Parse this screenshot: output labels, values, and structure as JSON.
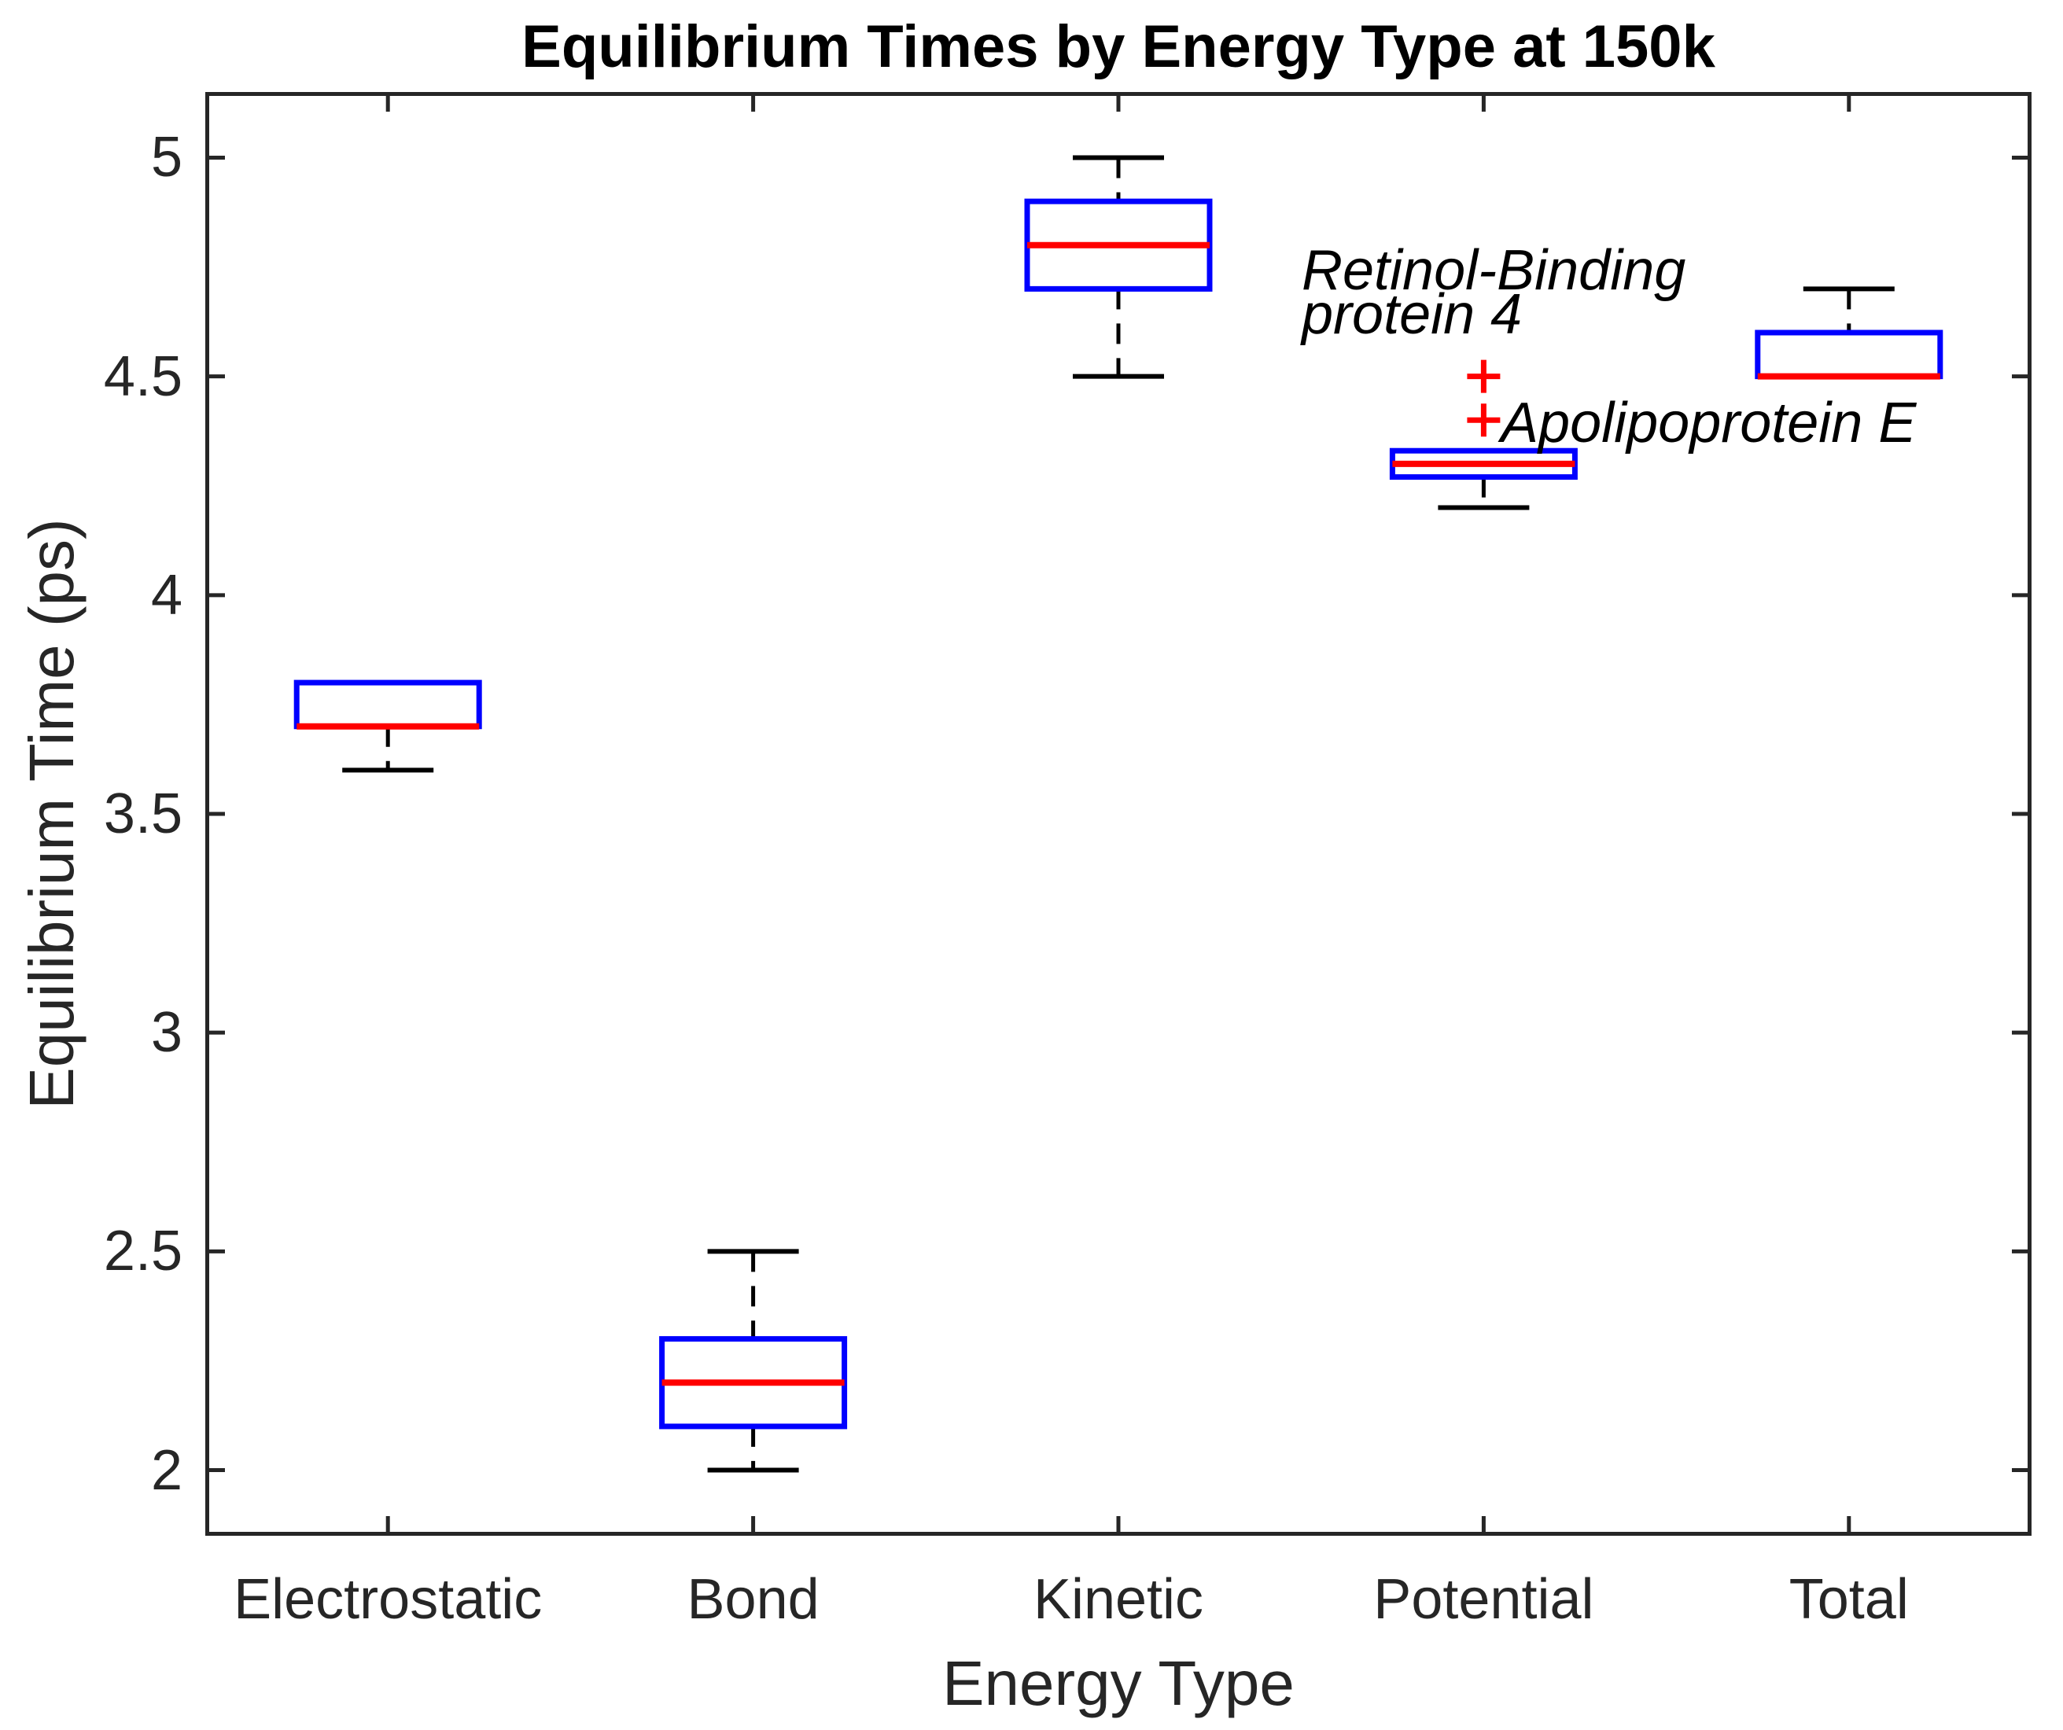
{
  "chart_data": {
    "type": "boxplot",
    "title": "Equilibrium Times by Energy Type at 150k",
    "xlabel": "Energy Type",
    "ylabel": "Equilibrium Time (ps)",
    "categories": [
      "Electrostatic",
      "Bond",
      "Kinetic",
      "Potential",
      "Total"
    ],
    "yticks": [
      2,
      2.5,
      3,
      3.5,
      4,
      4.5,
      5
    ],
    "ytick_labels": [
      "2",
      "2.5",
      "3",
      "3.5",
      "4",
      "4.5",
      "5"
    ],
    "ylim": [
      1.85,
      5.15
    ],
    "grid": false,
    "boxes": [
      {
        "category": "Electrostatic",
        "whisker_low": 3.6,
        "q1": 3.7,
        "median": 3.7,
        "q3": 3.8,
        "whisker_high": 3.8,
        "outliers": []
      },
      {
        "category": "Bond",
        "whisker_low": 2.0,
        "q1": 2.1,
        "median": 2.2,
        "q3": 2.3,
        "whisker_high": 2.5,
        "outliers": []
      },
      {
        "category": "Kinetic",
        "whisker_low": 4.5,
        "q1": 4.7,
        "median": 4.8,
        "q3": 4.9,
        "whisker_high": 5.0,
        "outliers": []
      },
      {
        "category": "Potential",
        "whisker_low": 4.2,
        "q1": 4.27,
        "median": 4.3,
        "q3": 4.33,
        "whisker_high": 4.33,
        "outliers": [
          4.4,
          4.5
        ]
      },
      {
        "category": "Total",
        "whisker_low": 4.5,
        "q1": 4.5,
        "median": 4.5,
        "q3": 4.6,
        "whisker_high": 4.7,
        "outliers": []
      }
    ],
    "annotations": [
      {
        "text": "Retinol-Binding\nprotein 4",
        "points_to_outlier": 4.5,
        "category": "Potential"
      },
      {
        "text": "Apolipoprotein E",
        "points_to_outlier": 4.4,
        "category": "Potential"
      }
    ],
    "colors": {
      "box": "#0000ff",
      "median": "#ff0000",
      "whisker": "#000000",
      "outlier": "#ff0000",
      "axis": "#262626",
      "background": "#ffffff"
    }
  }
}
